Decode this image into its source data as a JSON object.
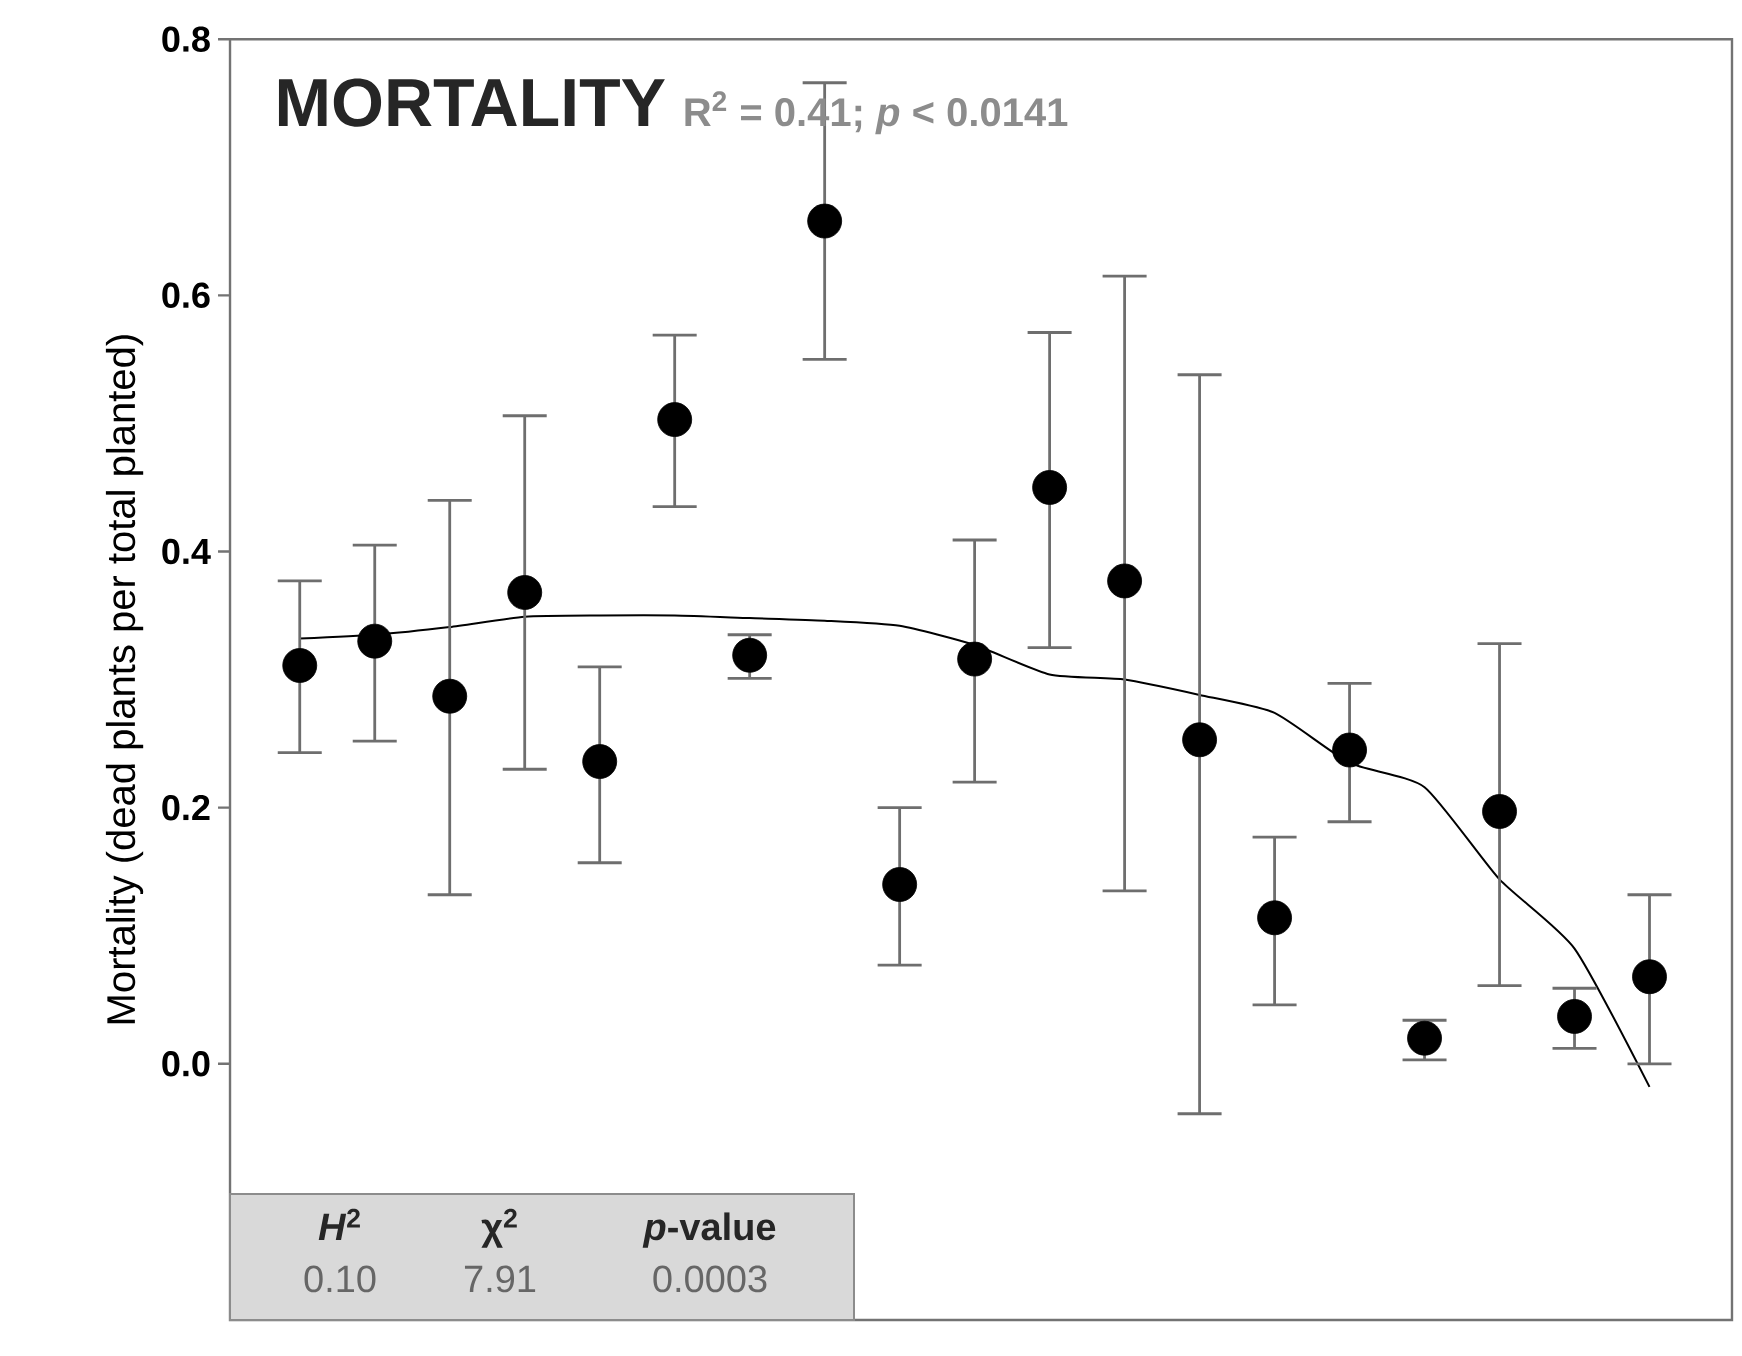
{
  "chart_data": {
    "type": "scatter",
    "title": "MORTALITY",
    "subtitle": "R$^{2}$ = 0.41; *p* < 0.0141",
    "ylabel": "Mortality (dead plants per total planted)",
    "categories": [
      null,
      null,
      null,
      null,
      null,
      null,
      null,
      null,
      null,
      null,
      null,
      null,
      null,
      null,
      null,
      null,
      null,
      null,
      null
    ],
    "series": [
      {
        "type": "scatter",
        "color": "#000000",
        "marker": "circle",
        "values": [
          0.311,
          0.33,
          0.287,
          0.368,
          0.236,
          0.503,
          0.319,
          0.658,
          0.14,
          0.316,
          0.45,
          0.377,
          0.253,
          0.114,
          0.245,
          0.02,
          0.197,
          0.037,
          0.068
        ],
        "errors": [
          [
            0.243,
            0.377
          ],
          [
            0.252,
            0.405
          ],
          [
            0.132,
            0.44
          ],
          [
            0.23,
            0.506
          ],
          [
            0.157,
            0.31
          ],
          [
            0.435,
            0.569
          ],
          [
            0.301,
            0.335
          ],
          [
            0.55,
            0.766
          ],
          [
            0.077,
            0.2
          ],
          [
            0.22,
            0.409
          ],
          [
            0.325,
            0.571
          ],
          [
            0.135,
            0.615
          ],
          [
            -0.039,
            0.538
          ],
          [
            0.046,
            0.177
          ],
          [
            0.189,
            0.297
          ],
          [
            0.003,
            0.034
          ],
          [
            0.061,
            0.328
          ],
          [
            0.012,
            0.059
          ],
          [
            0.0,
            0.132
          ]
        ]
      },
      {
        "type": "line",
        "color": "#000000",
        "line_style": "solid",
        "marker": "none",
        "values": [
          0.332,
          0.335,
          0.341,
          0.349,
          0.35,
          0.35,
          0.348,
          0.346,
          0.342,
          0.327,
          0.304,
          0.3,
          0.288,
          0.274,
          0.235,
          0.216,
          0.144,
          0.09,
          -0.018
        ]
      }
    ],
    "ylim": [
      -0.2,
      0.8
    ],
    "yticks": [
      {
        "value": 0,
        "label": "0.0"
      },
      {
        "value": 0.2,
        "label": "0.2"
      },
      {
        "value": 0.4,
        "label": "0.4"
      },
      {
        "value": 0.6,
        "label": "0.6"
      },
      {
        "value": 0.8,
        "label": "0.8"
      }
    ],
    "tick_labels": "y",
    "annotations": [
      "*H*$^{2}$",
      "χ$^{2}$",
      "*p*-value",
      "0.10",
      "7.91",
      "0.0003"
    ]
  }
}
